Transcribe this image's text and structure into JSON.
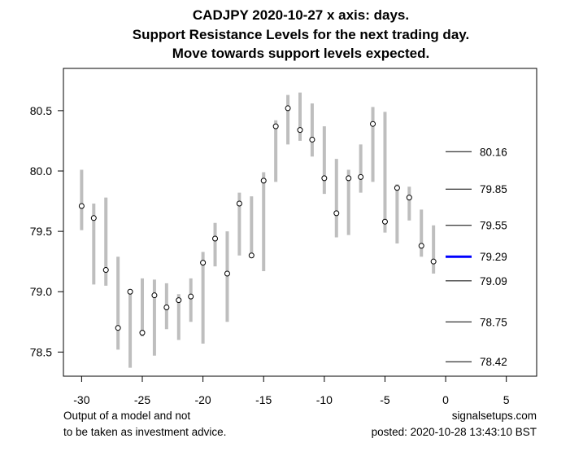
{
  "chart_data": {
    "type": "range-bar",
    "title_lines": [
      "CADJPY 2020-10-27 x axis: days.",
      "Support Resistance Levels for the next trading day.",
      "Move towards support levels expected."
    ],
    "xlim": [
      -31.5,
      7.5
    ],
    "ylim": [
      78.3,
      80.85
    ],
    "x_ticks": [
      -30,
      -25,
      -20,
      -15,
      -10,
      -5,
      0,
      5
    ],
    "y_ticks": [
      78.5,
      79.0,
      79.5,
      80.0,
      80.5
    ],
    "x_tick_labels": [
      "-30",
      "-25",
      "-20",
      "-15",
      "-10",
      "-5",
      "0",
      "5"
    ],
    "y_tick_labels": [
      "78.5",
      "79.0",
      "79.5",
      "80.0",
      "80.5"
    ],
    "bars": [
      {
        "x": -30,
        "low": 79.51,
        "high": 80.01,
        "close": 79.71
      },
      {
        "x": -29,
        "low": 79.06,
        "high": 79.73,
        "close": 79.61
      },
      {
        "x": -28,
        "low": 79.05,
        "high": 79.78,
        "close": 79.18
      },
      {
        "x": -27,
        "low": 78.52,
        "high": 79.29,
        "close": 78.7
      },
      {
        "x": -26,
        "low": 78.37,
        "high": 79.0,
        "close": 79.0
      },
      {
        "x": -25,
        "low": 78.63,
        "high": 79.11,
        "close": 78.66
      },
      {
        "x": -24,
        "low": 78.47,
        "high": 79.1,
        "close": 78.97
      },
      {
        "x": -23,
        "low": 78.69,
        "high": 79.07,
        "close": 78.87
      },
      {
        "x": -22,
        "low": 78.6,
        "high": 78.98,
        "close": 78.93
      },
      {
        "x": -21,
        "low": 78.75,
        "high": 79.11,
        "close": 78.96
      },
      {
        "x": -20,
        "low": 78.57,
        "high": 79.33,
        "close": 79.24
      },
      {
        "x": -19,
        "low": 79.21,
        "high": 79.57,
        "close": 79.44
      },
      {
        "x": -18,
        "low": 78.75,
        "high": 79.5,
        "close": 79.15
      },
      {
        "x": -17,
        "low": 79.3,
        "high": 79.82,
        "close": 79.73
      },
      {
        "x": -16,
        "low": 79.28,
        "high": 79.79,
        "close": 79.3
      },
      {
        "x": -15,
        "low": 79.17,
        "high": 79.99,
        "close": 79.92
      },
      {
        "x": -14,
        "low": 79.91,
        "high": 80.42,
        "close": 80.37
      },
      {
        "x": -13,
        "low": 80.22,
        "high": 80.63,
        "close": 80.52
      },
      {
        "x": -12,
        "low": 80.25,
        "high": 80.65,
        "close": 80.34
      },
      {
        "x": -11,
        "low": 80.12,
        "high": 80.56,
        "close": 80.26
      },
      {
        "x": -10,
        "low": 79.81,
        "high": 80.37,
        "close": 79.94
      },
      {
        "x": -9,
        "low": 79.45,
        "high": 80.1,
        "close": 79.65
      },
      {
        "x": -8,
        "low": 79.47,
        "high": 80.01,
        "close": 79.94
      },
      {
        "x": -7,
        "low": 79.82,
        "high": 80.22,
        "close": 79.95
      },
      {
        "x": -6,
        "low": 79.91,
        "high": 80.53,
        "close": 80.39
      },
      {
        "x": -5,
        "low": 79.49,
        "high": 80.49,
        "close": 79.58
      },
      {
        "x": -4,
        "low": 79.4,
        "high": 79.89,
        "close": 79.86
      },
      {
        "x": -3,
        "low": 79.59,
        "high": 79.87,
        "close": 79.78
      },
      {
        "x": -2,
        "low": 79.29,
        "high": 79.68,
        "close": 79.38
      },
      {
        "x": -1,
        "low": 79.15,
        "high": 79.55,
        "close": 79.25
      }
    ],
    "levels": [
      {
        "value": 80.16,
        "label": "80.16",
        "highlight": false
      },
      {
        "value": 79.85,
        "label": "79.85",
        "highlight": false
      },
      {
        "value": 79.55,
        "label": "79.55",
        "highlight": false
      },
      {
        "value": 79.29,
        "label": "79.29",
        "highlight": true
      },
      {
        "value": 79.09,
        "label": "79.09",
        "highlight": false
      },
      {
        "value": 78.75,
        "label": "78.75",
        "highlight": false
      },
      {
        "value": 78.42,
        "label": "78.42",
        "highlight": false
      }
    ],
    "footer_left": [
      "Output of a model and not",
      "to be taken as investment advice."
    ],
    "footer_right": [
      "signalsetups.com",
      "posted: 2020-10-28 13:43:10 BST"
    ],
    "colors": {
      "range": "#bebebe",
      "level": "#000000",
      "highlight": "#0000ff",
      "axis": "#000000"
    }
  }
}
